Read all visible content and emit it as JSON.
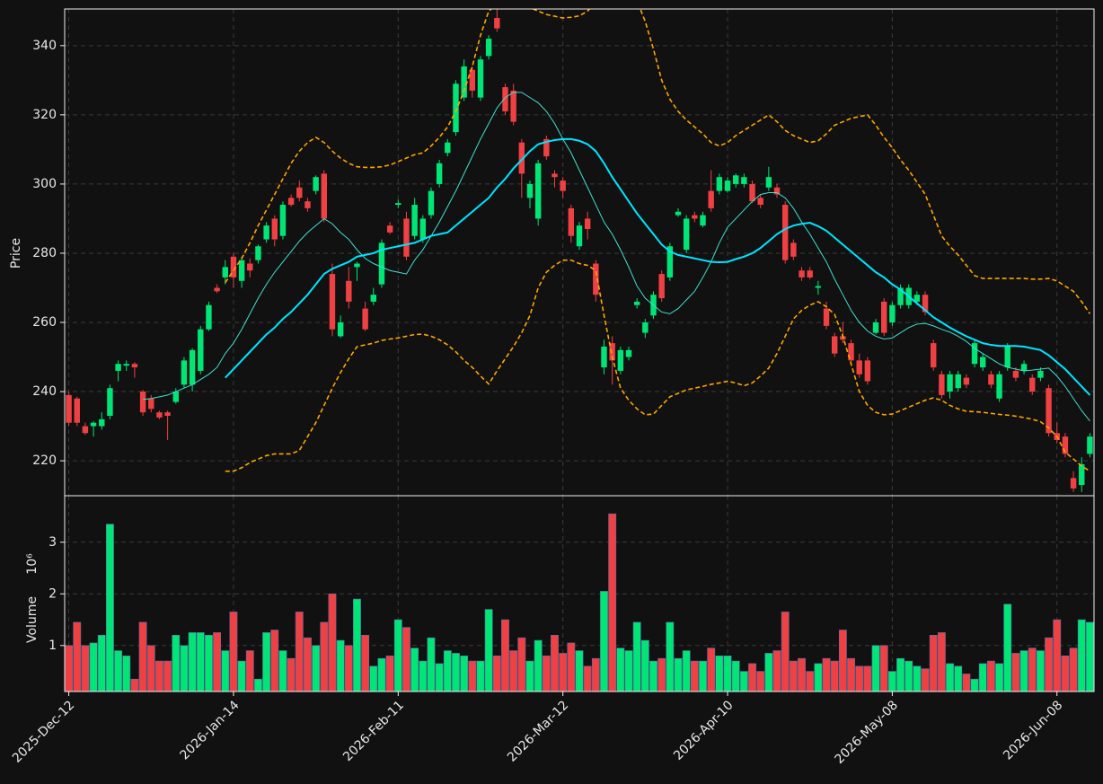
{
  "chart_data": {
    "type": "candlestick",
    "ylabel": "Price",
    "ylim": [
      209.9,
      350.6
    ],
    "yticks": [
      220,
      240,
      260,
      280,
      300,
      320,
      340
    ],
    "grid": true,
    "up_color": "#00e676",
    "down_color": "#ef4043",
    "categories": [
      "2025-Dec-12",
      null,
      null,
      null,
      null,
      null,
      null,
      null,
      null,
      null,
      null,
      null,
      null,
      null,
      null,
      null,
      null,
      null,
      null,
      null,
      "2026-Jan-14",
      null,
      null,
      null,
      null,
      null,
      null,
      null,
      null,
      null,
      null,
      null,
      null,
      null,
      null,
      null,
      null,
      null,
      null,
      null,
      "2026-Feb-11",
      null,
      null,
      null,
      null,
      null,
      null,
      null,
      null,
      null,
      null,
      null,
      null,
      null,
      null,
      null,
      null,
      null,
      null,
      null,
      "2026-Mar-12",
      null,
      null,
      null,
      null,
      null,
      null,
      null,
      null,
      null,
      null,
      null,
      null,
      null,
      null,
      null,
      null,
      null,
      null,
      null,
      "2026-Apr-10",
      null,
      null,
      null,
      null,
      null,
      null,
      null,
      null,
      null,
      null,
      null,
      null,
      null,
      null,
      null,
      null,
      null,
      null,
      null,
      "2026-May-08",
      null,
      null,
      null,
      null,
      null,
      null,
      null,
      null,
      null,
      null,
      null,
      null,
      null,
      null,
      null,
      null,
      null,
      null,
      null,
      "2026-Jun-08",
      null,
      null,
      null,
      null
    ],
    "open": [
      239,
      238,
      230,
      230,
      230,
      233,
      246,
      247.5,
      248,
      240,
      238,
      234,
      234,
      237,
      242,
      242,
      246,
      258,
      270,
      273,
      279,
      272,
      277,
      278,
      284,
      290,
      285,
      296,
      299,
      295,
      298,
      303,
      274,
      256,
      272,
      276,
      264,
      266,
      271,
      288,
      294,
      290,
      285,
      284,
      291,
      300,
      309,
      315,
      325,
      333,
      325,
      337,
      348,
      328,
      327,
      312,
      296,
      290,
      313,
      303,
      301,
      293,
      282,
      290,
      277,
      247,
      254,
      246,
      250,
      265,
      257,
      262,
      274,
      273,
      291,
      281,
      291,
      288,
      298,
      298,
      298,
      300,
      300,
      300,
      296,
      299,
      299,
      294,
      283,
      275,
      275,
      270,
      264,
      256,
      256,
      254,
      249,
      249,
      257,
      266,
      260,
      265,
      265,
      266,
      268,
      254,
      245,
      240,
      241,
      244,
      248,
      247,
      245,
      238,
      247,
      246,
      246,
      244,
      244,
      241,
      228,
      227,
      215,
      213,
      222
    ],
    "high": [
      240,
      238.5,
      231,
      231.5,
      234,
      242,
      249,
      249,
      248.5,
      240.5,
      239,
      234.5,
      234.5,
      241,
      250,
      252.5,
      259,
      266,
      271,
      278,
      280,
      279,
      278.5,
      282.5,
      289,
      291,
      295,
      297,
      301,
      296,
      302.5,
      304,
      277,
      262,
      276,
      277.5,
      266,
      270,
      284,
      289,
      295.5,
      292,
      296,
      291,
      299,
      307,
      313,
      330,
      336,
      334,
      337,
      343,
      351,
      329,
      329,
      313,
      301,
      307,
      314,
      304,
      302,
      294,
      289,
      292,
      278,
      255,
      256,
      253,
      253,
      267,
      261,
      269,
      275,
      283,
      293,
      291,
      292,
      292,
      304,
      303,
      302,
      303,
      303,
      301,
      297,
      305,
      300,
      295,
      284,
      276,
      276,
      272,
      266,
      257,
      260,
      255,
      251,
      250,
      261,
      267,
      266,
      271,
      271,
      269,
      269,
      255,
      246,
      246,
      246,
      245,
      255,
      251,
      246,
      246,
      254,
      247,
      249,
      245,
      247,
      242,
      231,
      228,
      217,
      221,
      228
    ],
    "low": [
      230,
      230,
      227.5,
      227,
      229,
      232,
      243,
      246,
      244,
      233,
      234,
      232,
      226,
      236.5,
      241,
      240,
      245,
      257.5,
      268.5,
      271,
      270,
      270,
      273,
      277,
      283,
      282,
      284,
      293.5,
      295,
      292,
      297,
      289,
      256,
      255.5,
      264,
      272,
      257.5,
      265,
      270,
      285.5,
      293,
      278,
      284,
      283,
      290,
      299,
      308,
      314,
      324,
      325,
      324,
      336,
      344,
      320,
      317,
      296,
      293,
      288,
      307,
      299,
      296,
      283,
      281,
      284,
      266,
      245,
      242,
      245,
      249,
      264,
      255.5,
      261,
      266,
      272,
      290.5,
      280,
      289,
      287.5,
      292,
      297,
      297.5,
      299,
      299,
      294.5,
      293,
      298,
      296,
      277,
      278,
      272,
      272.5,
      268,
      258,
      250,
      254,
      248,
      244,
      242,
      256.5,
      256,
      259,
      264,
      264,
      265,
      262,
      246,
      238,
      238,
      240,
      241,
      247,
      246,
      241,
      237,
      246,
      243,
      245,
      239,
      243,
      227,
      225,
      221,
      211,
      211,
      221
    ],
    "close": [
      231,
      231,
      228,
      231,
      232,
      241,
      248,
      248,
      247,
      234,
      235,
      232.5,
      233,
      240,
      249,
      252,
      258,
      265,
      269,
      276,
      273,
      278,
      275,
      282,
      288,
      284,
      294,
      294,
      296,
      293,
      302,
      290,
      258,
      260,
      266,
      277,
      258,
      268,
      283,
      286,
      294.5,
      279,
      294,
      290,
      298,
      306,
      312,
      329,
      334,
      327,
      336,
      342,
      345,
      321,
      318,
      303,
      300,
      306,
      308,
      302,
      298,
      285,
      288,
      287,
      268,
      253,
      249,
      252,
      252,
      266,
      260,
      268,
      267,
      282,
      292,
      290,
      290,
      291,
      293,
      302,
      301,
      302.5,
      302,
      295,
      294,
      302,
      297,
      278,
      279,
      273,
      273,
      270.5,
      259,
      251,
      255,
      249,
      245,
      243,
      260,
      257,
      265,
      270,
      270,
      268,
      263,
      247,
      239,
      245,
      245,
      242,
      254,
      250,
      242,
      245,
      253,
      244,
      248,
      240,
      246,
      228,
      226,
      222,
      212,
      219,
      227
    ],
    "overlays": [
      {
        "color": "#40e0d0",
        "width": 1,
        "dashed": false,
        "values": [
          null,
          null,
          null,
          null,
          null,
          null,
          null,
          null,
          null,
          237.7,
          238,
          238.5,
          239,
          240,
          241,
          242,
          243.5,
          245,
          247,
          251,
          254,
          258,
          262.5,
          267,
          271,
          274.5,
          277.5,
          280.5,
          283.5,
          286,
          288,
          290,
          288.5,
          286,
          284,
          281,
          278.5,
          277,
          276,
          275,
          274.5,
          274,
          278,
          281,
          285,
          289,
          293.5,
          298,
          303,
          308,
          313,
          317.5,
          322,
          325,
          326.5,
          326.5,
          325,
          323.5,
          321,
          317.5,
          313,
          309,
          304,
          299,
          294,
          289,
          285.5,
          281,
          276,
          270.5,
          267,
          265,
          263,
          262.5,
          264,
          266.5,
          269,
          273,
          277.5,
          283,
          287.5,
          290,
          292.5,
          295,
          297,
          297.5,
          297.5,
          296,
          293,
          289,
          285.5,
          281.5,
          277.5,
          272.5,
          268,
          263.5,
          260,
          257.5,
          256,
          255.2,
          255.5,
          257,
          258.5,
          259.5,
          259.7,
          259,
          258,
          257.2,
          256,
          254.5,
          252.5,
          251,
          249.5,
          248,
          247,
          246.5,
          246,
          246.2,
          246.5,
          246.8,
          244.5,
          241.5,
          238,
          234.5,
          231.5
        ]
      },
      {
        "color": "#00e5ff",
        "width": 2,
        "dashed": false,
        "values": [
          null,
          null,
          null,
          null,
          null,
          null,
          null,
          null,
          null,
          null,
          null,
          null,
          null,
          null,
          null,
          null,
          null,
          null,
          null,
          244,
          246.5,
          249,
          251.5,
          254,
          256.5,
          258.5,
          261,
          263,
          265.5,
          268,
          271,
          274,
          275.5,
          276.5,
          277.5,
          279,
          279.5,
          280,
          281,
          281.5,
          282,
          282.5,
          283,
          284,
          285,
          285.5,
          286,
          288,
          290,
          292,
          294,
          296,
          299,
          301.5,
          304.5,
          307,
          309.5,
          311.5,
          312.2,
          312.7,
          313,
          313,
          312.5,
          311.5,
          309.5,
          306,
          302,
          298.5,
          295,
          291.5,
          288.5,
          285.5,
          282.5,
          280.5,
          279.5,
          279,
          278.5,
          278,
          277.5,
          277.4,
          277.5,
          278.3,
          279,
          280,
          281.5,
          283.5,
          285.5,
          287,
          288,
          288.5,
          288.8,
          287.8,
          286.5,
          284.5,
          282.5,
          280.5,
          278.5,
          276.5,
          274.5,
          273,
          271,
          269.5,
          267.5,
          265.5,
          263.5,
          261.5,
          260,
          258.5,
          257.2,
          256,
          255,
          254,
          253.5,
          253.2,
          253.2,
          253.2,
          253,
          252.5,
          252,
          250.5,
          248.5,
          246.5,
          244,
          241.5,
          239
        ]
      },
      {
        "color": "#ffa500",
        "width": 1.6,
        "dashed": true,
        "values": [
          null,
          null,
          null,
          null,
          null,
          null,
          null,
          null,
          null,
          null,
          null,
          null,
          null,
          null,
          null,
          null,
          null,
          null,
          null,
          271.5,
          275,
          278.5,
          283,
          288,
          292.5,
          297,
          301.5,
          306,
          309.5,
          312,
          313.5,
          312,
          309.5,
          307.5,
          306,
          305,
          304.8,
          304.8,
          305,
          305.5,
          306.5,
          307.5,
          308.5,
          309,
          311,
          313.5,
          316.5,
          321,
          327,
          334,
          343,
          350,
          352,
          353.5,
          354,
          352.5,
          351,
          350,
          349,
          348.5,
          348,
          348.2,
          348.6,
          350,
          352.5,
          354.5,
          355.5,
          356,
          356,
          353,
          347,
          339,
          330,
          324.5,
          321,
          318.5,
          316.5,
          314.5,
          312,
          311,
          312,
          314,
          315.5,
          317,
          318.5,
          320,
          318,
          315.5,
          314,
          313,
          312,
          312.5,
          314.5,
          317,
          318,
          319,
          319.5,
          320,
          317,
          313.5,
          310.5,
          307,
          304,
          300.5,
          297,
          291,
          285,
          282,
          279.5,
          276.5,
          273.5,
          272.7,
          272.7,
          272.7,
          272.7,
          272.7,
          272.7,
          272.5,
          272.5,
          272.7,
          272,
          270.5,
          269,
          266,
          262.5
        ]
      },
      {
        "color": "#ffa500",
        "width": 1.6,
        "dashed": true,
        "values": [
          null,
          null,
          null,
          null,
          null,
          null,
          null,
          null,
          null,
          null,
          null,
          null,
          null,
          null,
          null,
          null,
          null,
          null,
          null,
          217,
          217,
          218,
          219.5,
          220.5,
          221.5,
          222,
          222,
          222,
          223,
          227,
          231,
          236,
          241,
          245.5,
          249.5,
          253,
          253.5,
          254,
          254.8,
          255.2,
          255.5,
          256,
          256.5,
          256.6,
          256,
          255,
          253.5,
          251.5,
          249,
          247,
          244.5,
          242.2,
          246,
          249.5,
          253,
          257,
          262,
          270,
          274.5,
          276.5,
          278,
          278,
          277,
          276.5,
          275,
          262,
          250,
          241,
          237.5,
          235,
          233.3,
          233.5,
          236,
          238.5,
          239.5,
          240.5,
          241,
          241.5,
          242.1,
          242.5,
          243,
          242.5,
          241.7,
          242.5,
          244.5,
          246.8,
          251,
          256,
          261,
          263.5,
          265,
          266,
          264.5,
          262.3,
          256,
          248,
          240,
          236,
          234,
          233.3,
          233.5,
          234.5,
          235.5,
          236.5,
          237.5,
          238.2,
          237.5,
          236,
          235,
          234.3,
          234.2,
          234,
          233.7,
          233.4,
          233.2,
          232.9,
          232.5,
          232,
          231.3,
          229.5,
          227,
          222.5,
          220.5,
          218.5,
          217
        ]
      }
    ],
    "volume_ylabel": "Volume",
    "volume_offset_label": "10⁶",
    "volume_ylim": [
      0.11,
      3.9
    ],
    "volume_yticks": [
      1,
      2,
      3
    ],
    "volume": [
      1.0,
      1.45,
      1.0,
      1.05,
      1.2,
      3.35,
      0.9,
      0.8,
      0.35,
      1.45,
      1.0,
      0.7,
      0.7,
      1.2,
      1.0,
      1.25,
      1.25,
      1.2,
      1.25,
      0.9,
      1.65,
      0.7,
      0.9,
      0.35,
      1.25,
      1.3,
      0.9,
      0.75,
      1.65,
      1.15,
      1.0,
      1.45,
      2.0,
      1.1,
      1.0,
      1.9,
      1.2,
      0.6,
      0.75,
      0.8,
      1.5,
      1.35,
      0.95,
      0.7,
      1.15,
      0.65,
      0.9,
      0.85,
      0.8,
      0.7,
      0.7,
      1.7,
      0.8,
      1.5,
      0.9,
      1.15,
      0.7,
      1.1,
      0.8,
      1.2,
      0.85,
      1.05,
      0.9,
      0.6,
      0.75,
      2.05,
      3.55,
      0.95,
      0.9,
      1.45,
      1.1,
      0.7,
      0.75,
      1.45,
      0.75,
      0.9,
      0.7,
      0.7,
      0.95,
      0.8,
      0.8,
      0.7,
      0.5,
      0.65,
      0.5,
      0.85,
      0.9,
      1.65,
      0.7,
      0.75,
      0.5,
      0.65,
      0.75,
      0.7,
      1.3,
      0.75,
      0.6,
      0.6,
      1.0,
      1.0,
      0.5,
      0.75,
      0.7,
      0.6,
      0.55,
      1.2,
      1.25,
      0.65,
      0.6,
      0.45,
      0.35,
      0.65,
      0.7,
      0.65,
      1.8,
      0.85,
      0.9,
      0.95,
      0.9,
      1.15,
      1.5,
      0.8,
      0.95,
      1.5,
      1.45
    ]
  }
}
